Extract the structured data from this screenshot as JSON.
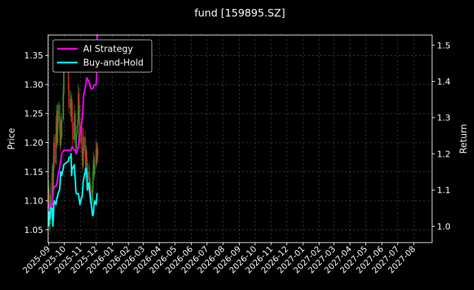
{
  "chart_data": {
    "type": "line",
    "title": "fund [159895.SZ]",
    "ylabel": "Price",
    "y2label": "Return",
    "ylim": [
      1.028,
      1.385
    ],
    "y2lim": [
      0.955,
      1.528
    ],
    "yticks": [
      "1.05",
      "1.10",
      "1.15",
      "1.20",
      "1.25",
      "1.30",
      "1.35"
    ],
    "y2ticks": [
      "1.0",
      "1.1",
      "1.2",
      "1.3",
      "1.4",
      "1.5"
    ],
    "xticks": [
      "2025-09",
      "2025-10",
      "2025-11",
      "2025-12",
      "2026-01",
      "2026-02",
      "2026-03",
      "2026-04",
      "2026-05",
      "2026-06",
      "2026-07",
      "2026-08",
      "2026-09",
      "2026-10",
      "2026-11",
      "2026-12",
      "2027-01",
      "2027-02",
      "2027-03",
      "2027-04",
      "2027-05",
      "2027-06",
      "2027-07",
      "2027-08"
    ],
    "xlim": [
      "2025-08-31",
      "2027-09-05"
    ],
    "grid": true,
    "legend": "top-left",
    "colors": {
      "up": "#2ca02c",
      "down": "#d62728",
      "ai": "#ff00ff",
      "bh": "#00ffff",
      "background": "#000000",
      "grid": "#555555"
    },
    "candles": [
      {
        "x": "2025-09-01",
        "open": 1.105,
        "close": 1.118,
        "high": 1.135,
        "low": 1.095
      },
      {
        "x": "2025-09-02",
        "open": 1.118,
        "close": 1.095,
        "high": 1.125,
        "low": 1.085
      },
      {
        "x": "2025-09-03",
        "open": 1.095,
        "close": 1.06,
        "high": 1.1,
        "low": 1.05
      },
      {
        "x": "2025-09-04",
        "open": 1.06,
        "close": 1.075,
        "high": 1.09,
        "low": 1.045
      },
      {
        "x": "2025-09-05",
        "open": 1.075,
        "close": 1.11,
        "high": 1.13,
        "low": 1.07
      },
      {
        "x": "2025-09-08",
        "open": 1.11,
        "close": 1.15,
        "high": 1.165,
        "low": 1.1
      },
      {
        "x": "2025-09-09",
        "open": 1.15,
        "close": 1.12,
        "high": 1.16,
        "low": 1.11
      },
      {
        "x": "2025-09-10",
        "open": 1.12,
        "close": 1.16,
        "high": 1.175,
        "low": 1.115
      },
      {
        "x": "2025-09-11",
        "open": 1.16,
        "close": 1.2,
        "high": 1.215,
        "low": 1.15
      },
      {
        "x": "2025-09-12",
        "open": 1.2,
        "close": 1.165,
        "high": 1.21,
        "low": 1.155
      },
      {
        "x": "2025-09-15",
        "open": 1.165,
        "close": 1.215,
        "high": 1.23,
        "low": 1.16
      },
      {
        "x": "2025-09-16",
        "open": 1.215,
        "close": 1.245,
        "high": 1.265,
        "low": 1.205
      },
      {
        "x": "2025-09-17",
        "open": 1.245,
        "close": 1.2,
        "high": 1.255,
        "low": 1.19
      },
      {
        "x": "2025-09-18",
        "open": 1.2,
        "close": 1.235,
        "high": 1.25,
        "low": 1.195
      },
      {
        "x": "2025-09-19",
        "open": 1.235,
        "close": 1.265,
        "high": 1.27,
        "low": 1.22
      },
      {
        "x": "2025-09-22",
        "open": 1.265,
        "close": 1.225,
        "high": 1.27,
        "low": 1.215
      },
      {
        "x": "2025-09-23",
        "open": 1.225,
        "close": 1.195,
        "high": 1.235,
        "low": 1.185
      },
      {
        "x": "2025-09-24",
        "open": 1.195,
        "close": 1.23,
        "high": 1.245,
        "low": 1.19
      },
      {
        "x": "2025-09-25",
        "open": 1.23,
        "close": 1.21,
        "high": 1.24,
        "low": 1.2
      },
      {
        "x": "2025-09-26",
        "open": 1.21,
        "close": 1.24,
        "high": 1.25,
        "low": 1.205
      },
      {
        "x": "2025-09-29",
        "open": 1.24,
        "close": 1.285,
        "high": 1.3,
        "low": 1.235
      },
      {
        "x": "2025-09-30",
        "open": 1.285,
        "close": 1.335,
        "high": 1.345,
        "low": 1.28
      },
      {
        "x": "2025-10-09",
        "open": 1.335,
        "close": 1.29,
        "high": 1.34,
        "low": 1.28
      },
      {
        "x": "2025-10-10",
        "open": 1.29,
        "close": 1.26,
        "high": 1.3,
        "low": 1.25
      },
      {
        "x": "2025-10-13",
        "open": 1.26,
        "close": 1.275,
        "high": 1.29,
        "low": 1.245
      },
      {
        "x": "2025-10-14",
        "open": 1.275,
        "close": 1.245,
        "high": 1.28,
        "low": 1.235
      },
      {
        "x": "2025-10-15",
        "open": 1.245,
        "close": 1.27,
        "high": 1.285,
        "low": 1.24
      },
      {
        "x": "2025-10-16",
        "open": 1.27,
        "close": 1.235,
        "high": 1.275,
        "low": 1.225
      },
      {
        "x": "2025-10-17",
        "open": 1.235,
        "close": 1.205,
        "high": 1.245,
        "low": 1.195
      },
      {
        "x": "2025-10-20",
        "open": 1.205,
        "close": 1.235,
        "high": 1.245,
        "low": 1.2
      },
      {
        "x": "2025-10-21",
        "open": 1.235,
        "close": 1.25,
        "high": 1.265,
        "low": 1.23
      },
      {
        "x": "2025-10-22",
        "open": 1.25,
        "close": 1.215,
        "high": 1.255,
        "low": 1.205
      },
      {
        "x": "2025-10-23",
        "open": 1.215,
        "close": 1.19,
        "high": 1.225,
        "low": 1.18
      },
      {
        "x": "2025-10-24",
        "open": 1.19,
        "close": 1.215,
        "high": 1.23,
        "low": 1.185
      },
      {
        "x": "2025-10-27",
        "open": 1.215,
        "close": 1.24,
        "high": 1.255,
        "low": 1.21
      },
      {
        "x": "2025-10-28",
        "open": 1.24,
        "close": 1.285,
        "high": 1.3,
        "low": 1.235
      },
      {
        "x": "2025-10-29",
        "open": 1.285,
        "close": 1.265,
        "high": 1.295,
        "low": 1.255
      },
      {
        "x": "2025-10-30",
        "open": 1.265,
        "close": 1.23,
        "high": 1.275,
        "low": 1.22
      },
      {
        "x": "2025-10-31",
        "open": 1.23,
        "close": 1.2,
        "high": 1.24,
        "low": 1.19
      },
      {
        "x": "2025-11-03",
        "open": 1.2,
        "close": 1.225,
        "high": 1.24,
        "low": 1.195
      },
      {
        "x": "2025-11-04",
        "open": 1.225,
        "close": 1.18,
        "high": 1.23,
        "low": 1.17
      },
      {
        "x": "2025-11-05",
        "open": 1.18,
        "close": 1.16,
        "high": 1.19,
        "low": 1.15
      },
      {
        "x": "2025-11-06",
        "open": 1.16,
        "close": 1.185,
        "high": 1.195,
        "low": 1.155
      },
      {
        "x": "2025-11-07",
        "open": 1.185,
        "close": 1.21,
        "high": 1.225,
        "low": 1.18
      },
      {
        "x": "2025-11-10",
        "open": 1.21,
        "close": 1.175,
        "high": 1.22,
        "low": 1.165
      },
      {
        "x": "2025-11-11",
        "open": 1.175,
        "close": 1.15,
        "high": 1.185,
        "low": 1.14
      },
      {
        "x": "2025-11-12",
        "open": 1.15,
        "close": 1.185,
        "high": 1.195,
        "low": 1.145
      },
      {
        "x": "2025-11-13",
        "open": 1.185,
        "close": 1.165,
        "high": 1.19,
        "low": 1.155
      },
      {
        "x": "2025-11-14",
        "open": 1.165,
        "close": 1.135,
        "high": 1.175,
        "low": 1.125
      },
      {
        "x": "2025-11-17",
        "open": 1.135,
        "close": 1.15,
        "high": 1.165,
        "low": 1.13
      },
      {
        "x": "2025-11-18",
        "open": 1.15,
        "close": 1.125,
        "high": 1.16,
        "low": 1.115
      },
      {
        "x": "2025-11-19",
        "open": 1.125,
        "close": 1.105,
        "high": 1.135,
        "low": 1.095
      },
      {
        "x": "2025-11-20",
        "open": 1.105,
        "close": 1.125,
        "high": 1.14,
        "low": 1.1
      },
      {
        "x": "2025-11-21",
        "open": 1.125,
        "close": 1.1,
        "high": 1.13,
        "low": 1.09
      },
      {
        "x": "2025-11-24",
        "open": 1.1,
        "close": 1.12,
        "high": 1.135,
        "low": 1.095
      },
      {
        "x": "2025-11-25",
        "open": 1.12,
        "close": 1.15,
        "high": 1.165,
        "low": 1.115
      },
      {
        "x": "2025-11-26",
        "open": 1.15,
        "close": 1.17,
        "high": 1.185,
        "low": 1.145
      },
      {
        "x": "2025-11-27",
        "open": 1.17,
        "close": 1.145,
        "high": 1.18,
        "low": 1.135
      },
      {
        "x": "2025-11-28",
        "open": 1.145,
        "close": 1.16,
        "high": 1.175,
        "low": 1.14
      },
      {
        "x": "2025-12-01",
        "open": 1.16,
        "close": 1.19,
        "high": 1.205,
        "low": 1.155
      },
      {
        "x": "2025-12-02",
        "open": 1.19,
        "close": 1.17,
        "high": 1.2,
        "low": 1.16
      },
      {
        "x": "2025-12-03",
        "open": 1.17,
        "close": 1.19,
        "high": 1.2,
        "low": 1.165
      },
      {
        "x": "2025-12-04",
        "open": 1.19,
        "close": 1.175,
        "high": 1.195,
        "low": 1.165
      }
    ],
    "series": [
      {
        "name": "AI Strategy",
        "color": "#ff00ff",
        "axis": "right",
        "x": [
          "2025-09-01",
          "2025-09-03",
          "2025-09-05",
          "2025-09-08",
          "2025-09-10",
          "2025-09-12",
          "2025-09-15",
          "2025-09-17",
          "2025-09-19",
          "2025-09-22",
          "2025-09-24",
          "2025-09-26",
          "2025-09-30",
          "2025-10-10",
          "2025-10-14",
          "2025-10-16",
          "2025-10-20",
          "2025-10-22",
          "2025-10-24",
          "2025-10-28",
          "2025-10-30",
          "2025-11-03",
          "2025-11-05",
          "2025-11-07",
          "2025-11-11",
          "2025-11-13",
          "2025-11-17",
          "2025-11-19",
          "2025-11-21",
          "2025-11-25",
          "2025-11-27",
          "2025-12-01",
          "2025-12-02",
          "2025-12-03"
        ],
        "values": [
          1.05,
          1.06,
          1.05,
          1.06,
          1.1,
          1.11,
          1.11,
          1.12,
          1.14,
          1.16,
          1.18,
          1.2,
          1.21,
          1.21,
          1.21,
          1.22,
          1.21,
          1.21,
          1.2,
          1.22,
          1.25,
          1.28,
          1.31,
          1.36,
          1.39,
          1.41,
          1.4,
          1.39,
          1.38,
          1.38,
          1.39,
          1.39,
          1.42,
          1.53
        ]
      },
      {
        "name": "Buy-and-Hold",
        "color": "#00ffff",
        "axis": "right",
        "x": [
          "2025-09-01",
          "2025-09-02",
          "2025-09-03",
          "2025-09-04",
          "2025-09-05",
          "2025-09-08",
          "2025-09-09",
          "2025-09-10",
          "2025-09-11",
          "2025-09-12",
          "2025-09-15",
          "2025-09-16",
          "2025-09-17",
          "2025-09-18",
          "2025-09-19",
          "2025-09-22",
          "2025-09-23",
          "2025-09-24",
          "2025-09-25",
          "2025-09-26",
          "2025-09-29",
          "2025-09-30",
          "2025-10-09",
          "2025-10-10",
          "2025-10-13",
          "2025-10-14",
          "2025-10-15",
          "2025-10-16",
          "2025-10-17",
          "2025-10-20",
          "2025-10-21",
          "2025-10-22",
          "2025-10-23",
          "2025-10-24",
          "2025-10-27",
          "2025-10-28",
          "2025-10-29",
          "2025-10-30",
          "2025-10-31",
          "2025-11-03",
          "2025-11-04",
          "2025-11-05",
          "2025-11-06",
          "2025-11-07",
          "2025-11-10",
          "2025-11-11",
          "2025-11-12",
          "2025-11-13",
          "2025-11-14",
          "2025-11-17",
          "2025-11-18",
          "2025-11-19",
          "2025-11-20",
          "2025-11-21",
          "2025-11-24",
          "2025-11-25",
          "2025-11-26",
          "2025-11-27",
          "2025-11-28",
          "2025-12-01",
          "2025-12-02",
          "2025-12-03",
          "2025-12-04"
        ],
        "values": [
          1.0,
          1.04,
          1.02,
          1.02,
          1.05,
          1.05,
          1.0,
          1.02,
          1.06,
          1.07,
          1.06,
          1.07,
          1.08,
          1.08,
          1.09,
          1.1,
          1.12,
          1.15,
          1.15,
          1.14,
          1.16,
          1.17,
          1.18,
          1.19,
          1.19,
          1.2,
          1.14,
          1.16,
          1.16,
          1.17,
          1.15,
          1.13,
          1.1,
          1.09,
          1.09,
          1.09,
          1.08,
          1.07,
          1.06,
          1.08,
          1.08,
          1.1,
          1.12,
          1.13,
          1.15,
          1.16,
          1.16,
          1.15,
          1.1,
          1.12,
          1.1,
          1.09,
          1.08,
          1.07,
          1.03,
          1.03,
          1.04,
          1.06,
          1.07,
          1.06,
          1.08,
          1.09,
          1.09
        ]
      }
    ]
  }
}
